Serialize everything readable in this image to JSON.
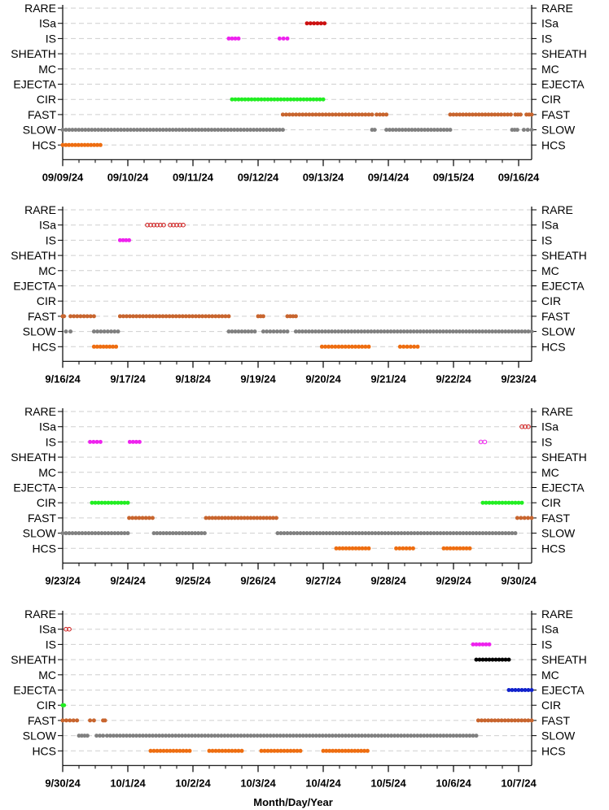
{
  "chart_data": {
    "type": "scatter",
    "categories": [
      "RARE",
      "ISa",
      "IS",
      "SHEATH",
      "MC",
      "EJECTA",
      "CIR",
      "FAST",
      "SLOW",
      "HCS"
    ],
    "colors": {
      "ISa": "#cc1111",
      "IS": "#ee22ee",
      "SHEATH": "#000000",
      "EJECTA": "#1122cc",
      "CIR": "#22ee22",
      "FAST": "#c8652e",
      "SLOW": "#808080",
      "HCS": "#ee6d10"
    },
    "grid": "dashed horizontal",
    "xlabel": "Month/Day/Year",
    "panels": [
      {
        "ticks": [
          "09/09/24",
          "09/10/24",
          "09/11/24",
          "09/12/24",
          "09/13/24",
          "09/14/24",
          "09/15/24",
          "09/16/24"
        ],
        "segments": [
          {
            "category": "ISa",
            "start": 3.75,
            "end": 4.02,
            "marker": "filled"
          },
          {
            "category": "IS",
            "start": 2.55,
            "end": 2.7,
            "marker": "filled"
          },
          {
            "category": "IS",
            "start": 3.33,
            "end": 3.45,
            "marker": "filled"
          },
          {
            "category": "CIR",
            "start": 2.6,
            "end": 4.0,
            "marker": "filled"
          },
          {
            "category": "FAST",
            "start": 3.38,
            "end": 4.75,
            "marker": "filled"
          },
          {
            "category": "FAST",
            "start": 4.82,
            "end": 4.97,
            "marker": "filled"
          },
          {
            "category": "FAST",
            "start": 5.95,
            "end": 6.88,
            "marker": "filled"
          },
          {
            "category": "FAST",
            "start": 6.95,
            "end": 7.03,
            "marker": "filled"
          },
          {
            "category": "FAST",
            "start": 7.12,
            "end": 7.2,
            "marker": "filled"
          },
          {
            "category": "SLOW",
            "start": 0.0,
            "end": 3.38,
            "marker": "filled"
          },
          {
            "category": "SLOW",
            "start": 4.75,
            "end": 4.79,
            "marker": "filled"
          },
          {
            "category": "SLOW",
            "start": 4.97,
            "end": 5.95,
            "marker": "filled"
          },
          {
            "category": "SLOW",
            "start": 6.9,
            "end": 6.98,
            "marker": "filled"
          },
          {
            "category": "SLOW",
            "start": 7.08,
            "end": 7.2,
            "marker": "filled"
          },
          {
            "category": "HCS",
            "start": 0.0,
            "end": 0.58,
            "marker": "filled"
          }
        ]
      },
      {
        "ticks": [
          "9/16/24",
          "9/17/24",
          "9/18/24",
          "9/19/24",
          "9/20/24",
          "9/21/24",
          "9/22/24",
          "9/23/24"
        ],
        "segments": [
          {
            "category": "ISa",
            "start": 1.3,
            "end": 1.55,
            "marker": "open"
          },
          {
            "category": "ISa",
            "start": 1.65,
            "end": 1.85,
            "marker": "open"
          },
          {
            "category": "IS",
            "start": 0.88,
            "end": 1.02,
            "marker": "filled"
          },
          {
            "category": "FAST",
            "start": 0.0,
            "end": 0.02,
            "marker": "filled"
          },
          {
            "category": "FAST",
            "start": 0.12,
            "end": 0.48,
            "marker": "filled"
          },
          {
            "category": "FAST",
            "start": 0.88,
            "end": 2.55,
            "marker": "filled"
          },
          {
            "category": "FAST",
            "start": 3.0,
            "end": 3.08,
            "marker": "filled"
          },
          {
            "category": "FAST",
            "start": 3.45,
            "end": 3.58,
            "marker": "filled"
          },
          {
            "category": "SLOW",
            "start": 0.05,
            "end": 0.12,
            "marker": "filled"
          },
          {
            "category": "SLOW",
            "start": 0.48,
            "end": 0.85,
            "marker": "filled"
          },
          {
            "category": "SLOW",
            "start": 2.55,
            "end": 2.95,
            "marker": "filled"
          },
          {
            "category": "SLOW",
            "start": 3.08,
            "end": 3.45,
            "marker": "filled"
          },
          {
            "category": "SLOW",
            "start": 3.58,
            "end": 7.2,
            "marker": "filled"
          },
          {
            "category": "HCS",
            "start": 0.48,
            "end": 0.82,
            "marker": "filled"
          },
          {
            "category": "HCS",
            "start": 3.98,
            "end": 4.7,
            "marker": "filled"
          },
          {
            "category": "HCS",
            "start": 5.18,
            "end": 5.45,
            "marker": "filled"
          }
        ]
      },
      {
        "ticks": [
          "9/23/24",
          "9/24/24",
          "9/25/24",
          "9/26/24",
          "9/27/24",
          "9/28/24",
          "9/29/24",
          "9/30/24"
        ],
        "segments": [
          {
            "category": "ISa",
            "start": 7.05,
            "end": 7.15,
            "marker": "open"
          },
          {
            "category": "IS",
            "start": 0.42,
            "end": 0.58,
            "marker": "filled"
          },
          {
            "category": "IS",
            "start": 1.03,
            "end": 1.18,
            "marker": "filled"
          },
          {
            "category": "IS",
            "start": 6.42,
            "end": 6.48,
            "marker": "open"
          },
          {
            "category": "CIR",
            "start": 0.45,
            "end": 1.0,
            "marker": "filled"
          },
          {
            "category": "CIR",
            "start": 6.45,
            "end": 7.05,
            "marker": "filled"
          },
          {
            "category": "FAST",
            "start": 1.02,
            "end": 1.38,
            "marker": "filled"
          },
          {
            "category": "FAST",
            "start": 2.2,
            "end": 3.28,
            "marker": "filled"
          },
          {
            "category": "FAST",
            "start": 6.98,
            "end": 7.2,
            "marker": "filled"
          },
          {
            "category": "SLOW",
            "start": 0.0,
            "end": 1.0,
            "marker": "filled"
          },
          {
            "category": "SLOW",
            "start": 1.4,
            "end": 2.18,
            "marker": "filled"
          },
          {
            "category": "SLOW",
            "start": 3.3,
            "end": 6.95,
            "marker": "filled"
          },
          {
            "category": "HCS",
            "start": 4.2,
            "end": 4.7,
            "marker": "filled"
          },
          {
            "category": "HCS",
            "start": 5.12,
            "end": 5.38,
            "marker": "filled"
          },
          {
            "category": "HCS",
            "start": 5.85,
            "end": 6.25,
            "marker": "filled"
          }
        ]
      },
      {
        "ticks": [
          "9/30/24",
          "10/1/24",
          "10/2/24",
          "10/3/24",
          "10/4/24",
          "10/5/24",
          "10/6/24",
          "10/7/24"
        ],
        "segments": [
          {
            "category": "ISa",
            "start": 0.05,
            "end": 0.1,
            "marker": "open"
          },
          {
            "category": "IS",
            "start": 6.3,
            "end": 6.55,
            "marker": "filled"
          },
          {
            "category": "SHEATH",
            "start": 6.35,
            "end": 6.85,
            "marker": "filled"
          },
          {
            "category": "EJECTA",
            "start": 6.85,
            "end": 7.2,
            "marker": "filled"
          },
          {
            "category": "CIR",
            "start": 0.0,
            "end": 0.02,
            "marker": "filled"
          },
          {
            "category": "FAST",
            "start": 0.0,
            "end": 0.22,
            "marker": "filled"
          },
          {
            "category": "FAST",
            "start": 0.42,
            "end": 0.48,
            "marker": "filled"
          },
          {
            "category": "FAST",
            "start": 0.62,
            "end": 0.65,
            "marker": "filled"
          },
          {
            "category": "FAST",
            "start": 6.38,
            "end": 7.2,
            "marker": "filled"
          },
          {
            "category": "SLOW",
            "start": 0.25,
            "end": 0.38,
            "marker": "filled"
          },
          {
            "category": "SLOW",
            "start": 0.52,
            "end": 0.62,
            "marker": "filled"
          },
          {
            "category": "SLOW",
            "start": 0.68,
            "end": 6.35,
            "marker": "filled"
          },
          {
            "category": "HCS",
            "start": 1.35,
            "end": 1.95,
            "marker": "filled"
          },
          {
            "category": "HCS",
            "start": 2.25,
            "end": 2.75,
            "marker": "filled"
          },
          {
            "category": "HCS",
            "start": 3.05,
            "end": 3.65,
            "marker": "filled"
          },
          {
            "category": "HCS",
            "start": 4.0,
            "end": 4.68,
            "marker": "filled"
          }
        ]
      }
    ]
  }
}
